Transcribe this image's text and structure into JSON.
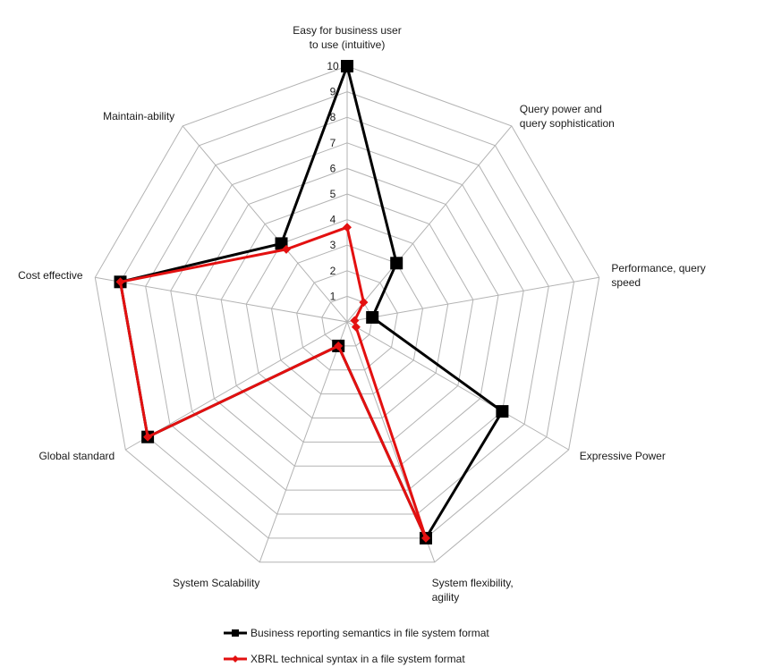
{
  "chart_data": {
    "type": "radar",
    "title": "",
    "axes": [
      [
        "Easy for business user",
        "to use (intuitive)"
      ],
      [
        "Query power and",
        "query sophistication"
      ],
      [
        "Performance, query",
        "speed"
      ],
      [
        "Expressive Power"
      ],
      [
        "System flexibility,",
        "agility"
      ],
      [
        "System Scalability"
      ],
      [
        "Global standard"
      ],
      [
        "Cost effective"
      ],
      [
        "Maintain-ability"
      ]
    ],
    "rlim": [
      0,
      10
    ],
    "ticks": [
      "1",
      "2",
      "3",
      "4",
      "5",
      "6",
      "7",
      "8",
      "9",
      "10"
    ],
    "grid": true,
    "legend_position": "bottom",
    "series": [
      {
        "name": "Business reporting semantics in file system format",
        "color": "#000000",
        "marker": "square",
        "values": [
          10,
          3,
          1,
          7,
          9,
          1,
          9,
          9,
          4
        ]
      },
      {
        "name": "XBRL technical syntax in a file system format",
        "color": "#e31010",
        "marker": "diamond",
        "values": [
          3.7,
          1,
          0.3,
          0.4,
          9,
          1,
          9,
          9,
          3.7
        ]
      }
    ]
  }
}
